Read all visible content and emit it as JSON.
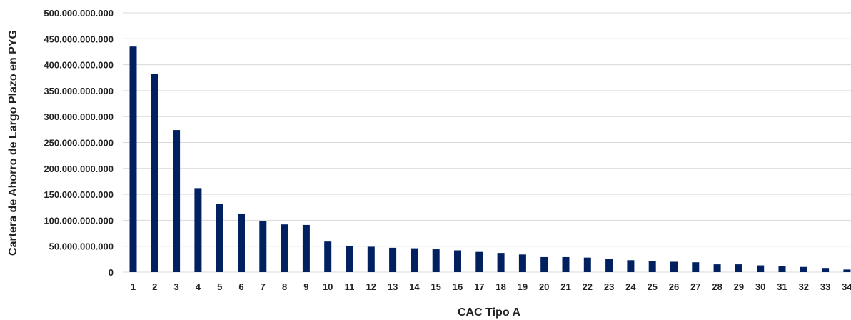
{
  "chart_data": {
    "type": "bar",
    "title": "",
    "xlabel": "CAC Tipo A",
    "ylabel": "Cartera de Ahorro de Largo Plazo en PYG",
    "ylim": [
      0,
      500000000000
    ],
    "yticks": [
      0,
      50000000000,
      100000000000,
      150000000000,
      200000000000,
      250000000000,
      300000000000,
      350000000000,
      400000000000,
      450000000000,
      500000000000
    ],
    "ytick_labels": [
      "0",
      "50.000.000.000",
      "100.000.000.000",
      "150.000.000.000",
      "200.000.000.000",
      "250.000.000.000",
      "300.000.000.000",
      "350.000.000.000",
      "400.000.000.000",
      "450.000.000.000",
      "500.000.000.000"
    ],
    "categories": [
      "1",
      "2",
      "3",
      "4",
      "5",
      "6",
      "7",
      "8",
      "9",
      "10",
      "11",
      "12",
      "13",
      "14",
      "15",
      "16",
      "17",
      "18",
      "19",
      "20",
      "21",
      "22",
      "23",
      "24",
      "25",
      "26",
      "27",
      "28",
      "29",
      "30",
      "31",
      "32",
      "33",
      "34"
    ],
    "values": [
      435000000000,
      382000000000,
      274000000000,
      162000000000,
      131000000000,
      113000000000,
      99000000000,
      92000000000,
      91000000000,
      59000000000,
      51000000000,
      49000000000,
      47000000000,
      46000000000,
      44000000000,
      42000000000,
      39000000000,
      37000000000,
      34000000000,
      29000000000,
      29000000000,
      28000000000,
      25000000000,
      23000000000,
      21000000000,
      20000000000,
      19000000000,
      15000000000,
      15000000000,
      13000000000,
      11000000000,
      10000000000,
      8000000000,
      5000000000
    ],
    "grid": true,
    "legend": "none",
    "bar_color": "#002060"
  }
}
